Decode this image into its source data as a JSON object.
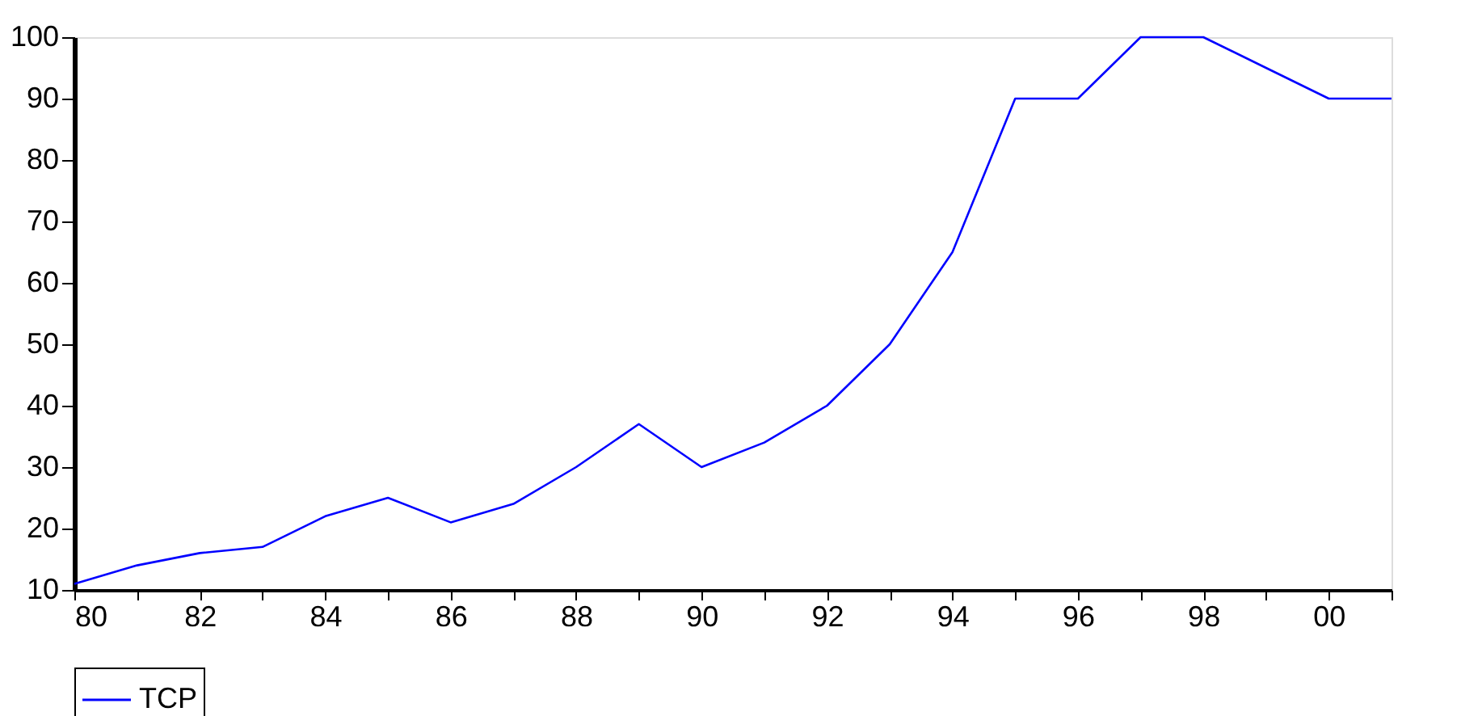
{
  "chart_data": {
    "type": "line",
    "x": [
      1980,
      1981,
      1982,
      1983,
      1984,
      1985,
      1986,
      1987,
      1988,
      1989,
      1990,
      1991,
      1992,
      1993,
      1994,
      1995,
      1996,
      1997,
      1998,
      1999,
      2000,
      2001
    ],
    "series": [
      {
        "name": "TCP",
        "color": "#0000ff",
        "values": [
          11,
          14,
          16,
          17,
          22,
          25,
          21,
          24,
          30,
          37,
          30,
          34,
          40,
          50,
          65,
          90,
          90,
          100,
          100,
          95,
          90,
          90
        ]
      }
    ],
    "xlim": [
      1980,
      2001
    ],
    "xticks": [
      {
        "value": 1980,
        "label": "80"
      },
      {
        "value": 1981,
        "label": null
      },
      {
        "value": 1982,
        "label": "82"
      },
      {
        "value": 1983,
        "label": null
      },
      {
        "value": 1984,
        "label": "84"
      },
      {
        "value": 1985,
        "label": null
      },
      {
        "value": 1986,
        "label": "86"
      },
      {
        "value": 1987,
        "label": null
      },
      {
        "value": 1988,
        "label": "88"
      },
      {
        "value": 1989,
        "label": null
      },
      {
        "value": 1990,
        "label": "90"
      },
      {
        "value": 1991,
        "label": null
      },
      {
        "value": 1992,
        "label": "92"
      },
      {
        "value": 1993,
        "label": null
      },
      {
        "value": 1994,
        "label": "94"
      },
      {
        "value": 1995,
        "label": null
      },
      {
        "value": 1996,
        "label": "96"
      },
      {
        "value": 1997,
        "label": null
      },
      {
        "value": 1998,
        "label": "98"
      },
      {
        "value": 1999,
        "label": null
      },
      {
        "value": 2000,
        "label": "00"
      },
      {
        "value": 2001,
        "label": null
      }
    ],
    "ylim": [
      10,
      100
    ],
    "yticks": [
      10,
      20,
      30,
      40,
      50,
      60,
      70,
      80,
      90,
      100
    ],
    "grid": false,
    "legend": "bottom",
    "marker": "none",
    "line_style": "solid"
  }
}
